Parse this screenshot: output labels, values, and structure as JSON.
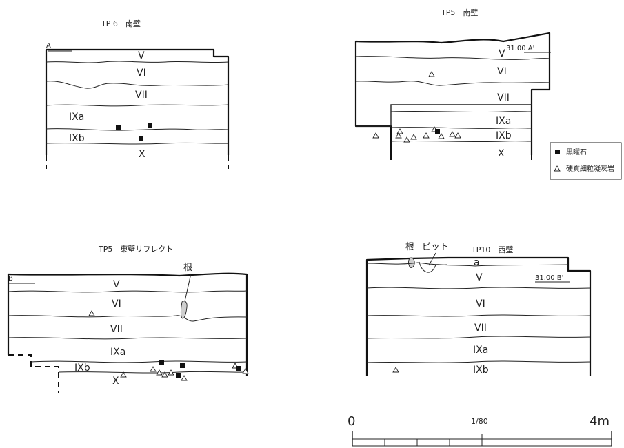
{
  "sections": {
    "tp6_south": {
      "title": "TP 6　南壁",
      "point": "A",
      "layers": [
        "V",
        "VI",
        "VII",
        "IXa",
        "IXb",
        "X"
      ]
    },
    "tp5_south": {
      "title": "TP5　南壁",
      "elevation": "31.00 A'",
      "layers": [
        "V",
        "VI",
        "VII",
        "IXa",
        "IXb",
        "X"
      ]
    },
    "tp5_east": {
      "title": "TP5　東壁リフレクト",
      "point": "B",
      "root_label": "根",
      "layers": [
        "V",
        "VI",
        "VII",
        "IXa",
        "IXb",
        "X"
      ]
    },
    "tp10_west": {
      "title": "TP10　西壁",
      "root_label": "根",
      "pit_label": "ピット",
      "elevation": "31.00 B'",
      "layers": [
        "a",
        "V",
        "VI",
        "VII",
        "IXa",
        "IXb"
      ]
    }
  },
  "legend": {
    "obsidian": "黒曜石",
    "tuff": "硬質細粒凝灰岩"
  },
  "scale": {
    "start": "0",
    "ratio": "1/80",
    "end": "4m"
  }
}
